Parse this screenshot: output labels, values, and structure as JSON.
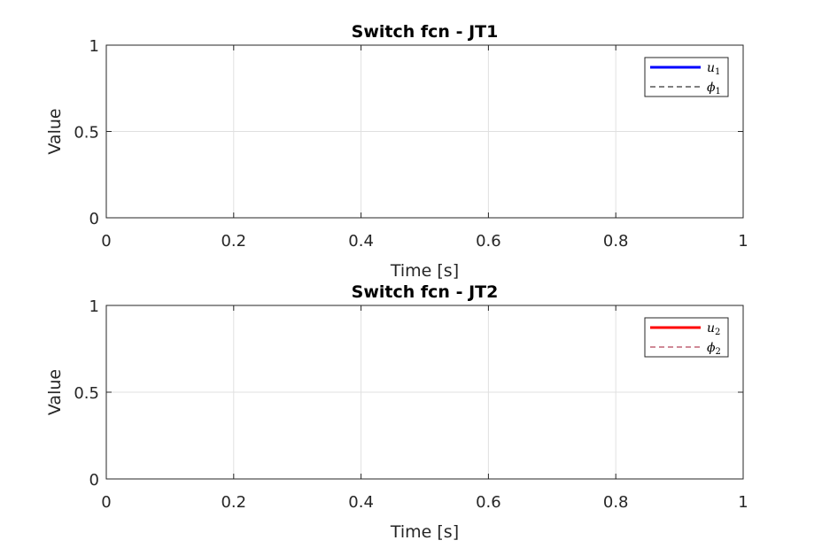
{
  "chart_data": [
    {
      "type": "line",
      "title": "Switch fcn - JT1",
      "xlabel": "Time [s]",
      "ylabel": "Value",
      "xlim": [
        0,
        1
      ],
      "ylim": [
        0,
        1
      ],
      "xticks": [
        "0",
        "0.2",
        "0.4",
        "0.6",
        "0.8",
        "1"
      ],
      "yticks": [
        "0",
        "0.5",
        "1"
      ],
      "grid": true,
      "legend_position": "top-right",
      "series": [
        {
          "name": "u",
          "subscript": "1",
          "color": "#0000ff",
          "style": "solid",
          "x": [],
          "y": []
        },
        {
          "name": "ϕ",
          "subscript": "1",
          "color": "#000000",
          "style": "dashed",
          "x": [],
          "y": []
        }
      ]
    },
    {
      "type": "line",
      "title": "Switch fcn - JT2",
      "xlabel": "Time [s]",
      "ylabel": "Value",
      "xlim": [
        0,
        1
      ],
      "ylim": [
        0,
        1
      ],
      "xticks": [
        "0",
        "0.2",
        "0.4",
        "0.6",
        "0.8",
        "1"
      ],
      "yticks": [
        "0",
        "0.5",
        "1"
      ],
      "grid": true,
      "legend_position": "top-right",
      "series": [
        {
          "name": "u",
          "subscript": "2",
          "color": "#ff0000",
          "style": "solid",
          "x": [],
          "y": []
        },
        {
          "name": "ϕ",
          "subscript": "2",
          "color": "#a2142f",
          "style": "dashed",
          "x": [],
          "y": []
        }
      ]
    }
  ]
}
